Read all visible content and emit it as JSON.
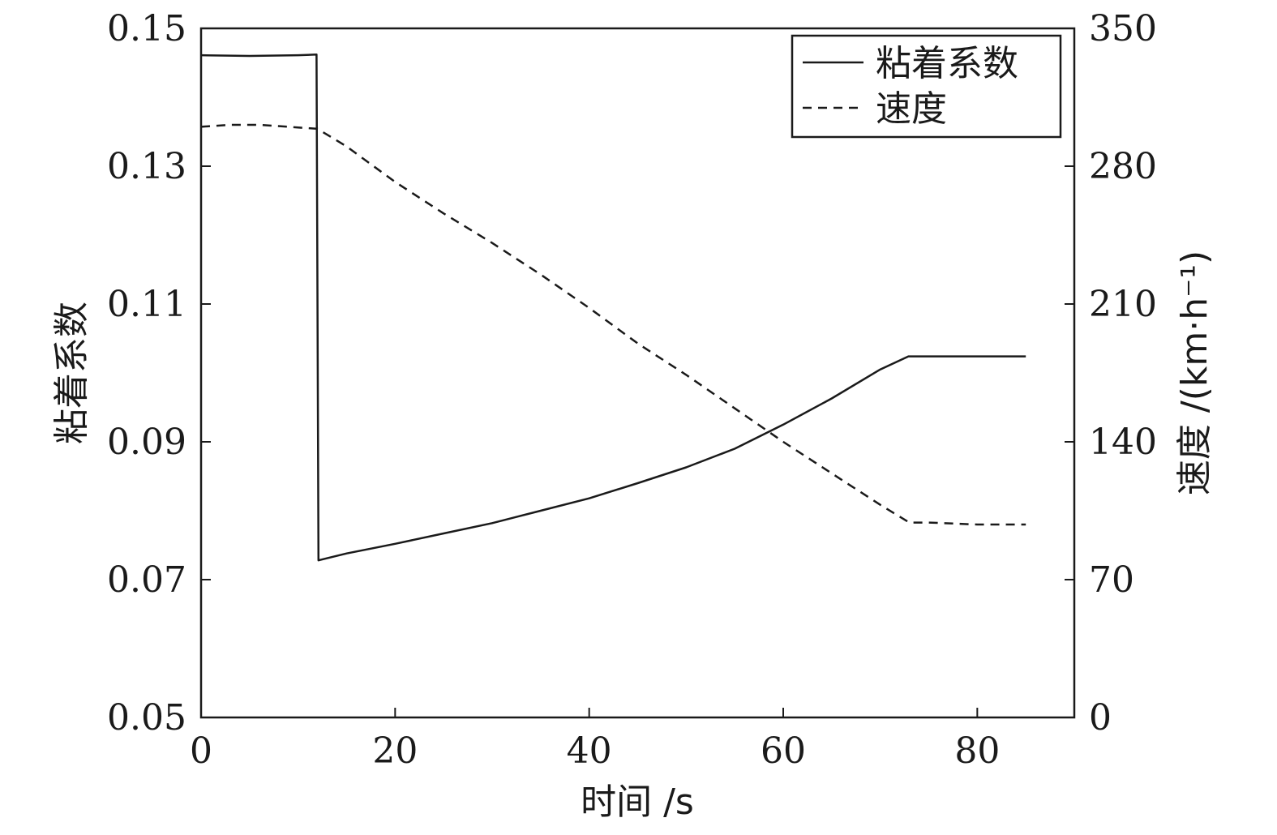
{
  "chart_data": {
    "type": "line",
    "xlabel": "时间 /s",
    "ylabel_left": "粘着系数",
    "ylabel_right": "速度 /(km·h⁻¹)",
    "xlim": [
      0,
      90
    ],
    "ylim_left": [
      0.05,
      0.15
    ],
    "ylim_right": [
      0,
      350
    ],
    "x_ticks": [
      "0",
      "20",
      "40",
      "60",
      "80"
    ],
    "x_tick_values": [
      0,
      20,
      40,
      60,
      80
    ],
    "y_left_ticks": [
      "0.05",
      "0.07",
      "0.09",
      "0.11",
      "0.13",
      "0.15"
    ],
    "y_left_tick_values": [
      0.05,
      0.07,
      0.09,
      0.11,
      0.13,
      0.15
    ],
    "y_right_ticks": [
      "0",
      "70",
      "140",
      "210",
      "280",
      "350"
    ],
    "y_right_tick_values": [
      0,
      70,
      140,
      210,
      280,
      350
    ],
    "grid": false,
    "legend_position": "top-right",
    "series": [
      {
        "name": "粘着系数",
        "axis": "left",
        "style": "solid",
        "color": "#1a1a1a",
        "x": [
          0,
          5,
          10,
          11.9,
          12.1,
          15,
          20,
          25,
          30,
          35,
          40,
          45,
          50,
          55,
          60,
          65,
          70,
          72.9,
          75,
          80,
          85
        ],
        "y": [
          0.1461,
          0.146,
          0.1461,
          0.1462,
          0.0728,
          0.0738,
          0.0752,
          0.0767,
          0.0782,
          0.08,
          0.0818,
          0.084,
          0.0863,
          0.089,
          0.0925,
          0.0963,
          0.1005,
          0.1024,
          0.1024,
          0.1024,
          0.1024
        ]
      },
      {
        "name": "速度",
        "axis": "right",
        "style": "dashed",
        "color": "#1a1a1a",
        "x": [
          0,
          3,
          6,
          9,
          12,
          15,
          20,
          25,
          30,
          35,
          40,
          45,
          50,
          55,
          60,
          65,
          70,
          73,
          75,
          80,
          85
        ],
        "y": [
          300,
          301,
          301,
          300,
          299,
          290,
          272,
          256,
          241,
          225,
          208,
          190,
          174,
          157,
          140,
          124,
          108,
          99,
          99,
          98,
          98
        ]
      }
    ]
  }
}
